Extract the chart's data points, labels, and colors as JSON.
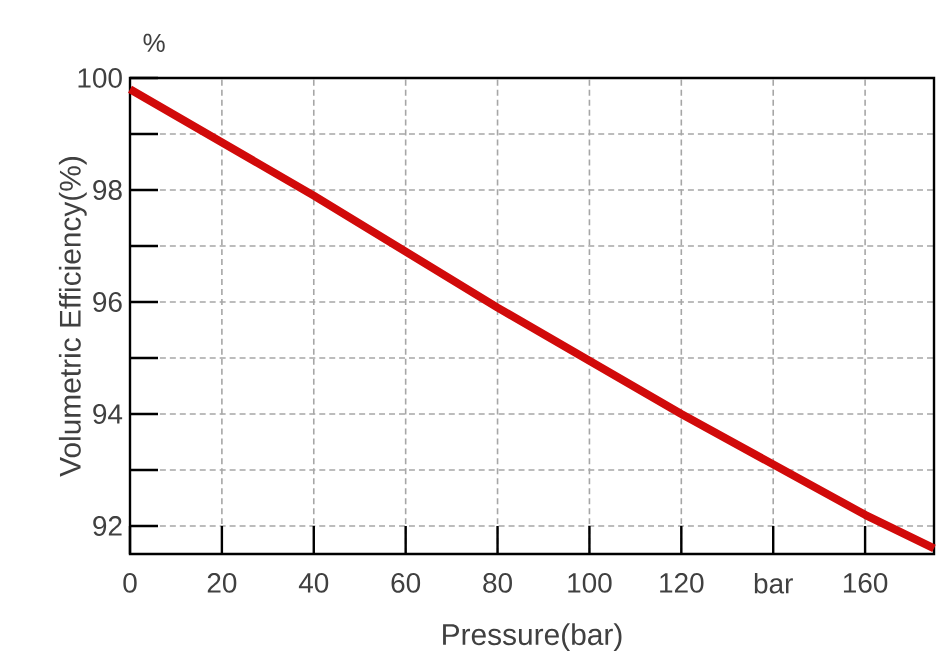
{
  "chart_data": {
    "type": "line",
    "xlabel": "Pressure(bar)",
    "ylabel": "Volumetric Efficiency(%)",
    "annotations": [
      "%"
    ],
    "x": [
      0,
      40,
      80,
      120,
      160,
      175
    ],
    "series": [
      {
        "color": "#d10a0a",
        "values": [
          99.8,
          97.9,
          95.9,
          94.0,
          92.2,
          91.6
        ]
      }
    ],
    "xlim": [
      0,
      175
    ],
    "ylim": [
      91.5,
      100
    ],
    "xticks": [
      0,
      20,
      40,
      60,
      80,
      100,
      120,
      {
        "value": 140,
        "label": "bar"
      },
      160
    ],
    "yticks": [
      92,
      {
        "value": 93,
        "label": null
      },
      94,
      {
        "value": 95,
        "label": null
      },
      96,
      {
        "value": 97,
        "label": null
      },
      98,
      {
        "value": 99,
        "label": null
      },
      100
    ],
    "grid": true,
    "marker": "none",
    "line_style": "solid"
  }
}
